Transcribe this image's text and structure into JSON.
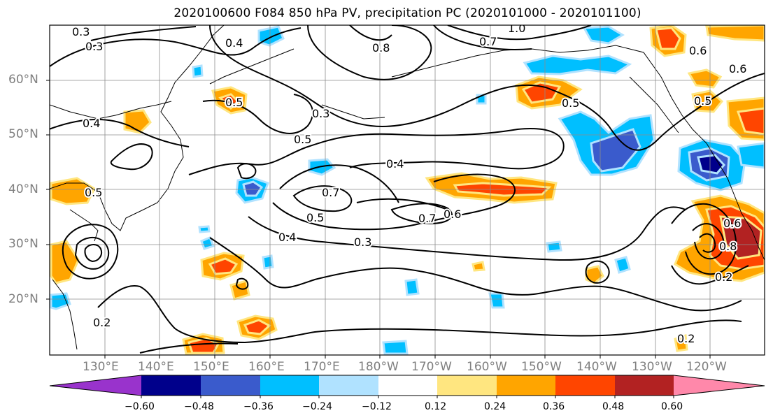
{
  "title": "2020100600 F084 850 hPa PV, precipitation PC (2020101000 - 2020101100)",
  "lat_labels": [
    "60°N",
    "50°N",
    "40°N",
    "30°N",
    "20°N"
  ],
  "lon_labels": [
    "130°E",
    "140°E",
    "150°E",
    "160°E",
    "170°E",
    "180°W",
    "170°W",
    "160°W",
    "150°W",
    "140°W",
    "130°W",
    "120°W"
  ],
  "colorbar": {
    "colors": [
      "#9933cc",
      "#00008b",
      "#3a5bcc",
      "#00bfff",
      "#b0e2ff",
      "#ffffff",
      "#ffe680",
      "#ffa500",
      "#ff4500",
      "#b22222",
      "#ff88aa"
    ],
    "ticks": [
      "−0.60",
      "−0.48",
      "−0.36",
      "−0.24",
      "−0.12",
      "0.12",
      "0.24",
      "0.36",
      "0.48",
      "0.60"
    ]
  },
  "contour_labels": [
    "0.3",
    "0.3",
    "0.4",
    "0.8",
    "1.0",
    "0.7",
    "0.6",
    "0.5",
    "0.5",
    "0.3",
    "0.5",
    "0.4",
    "0.4",
    "0.5",
    "0.7",
    "0.6",
    "0.6",
    "0.7",
    "0.4",
    "0.5",
    "0.3",
    "0.8",
    "0.2",
    "0.2",
    "0.2",
    "0.5",
    "0.6"
  ]
}
